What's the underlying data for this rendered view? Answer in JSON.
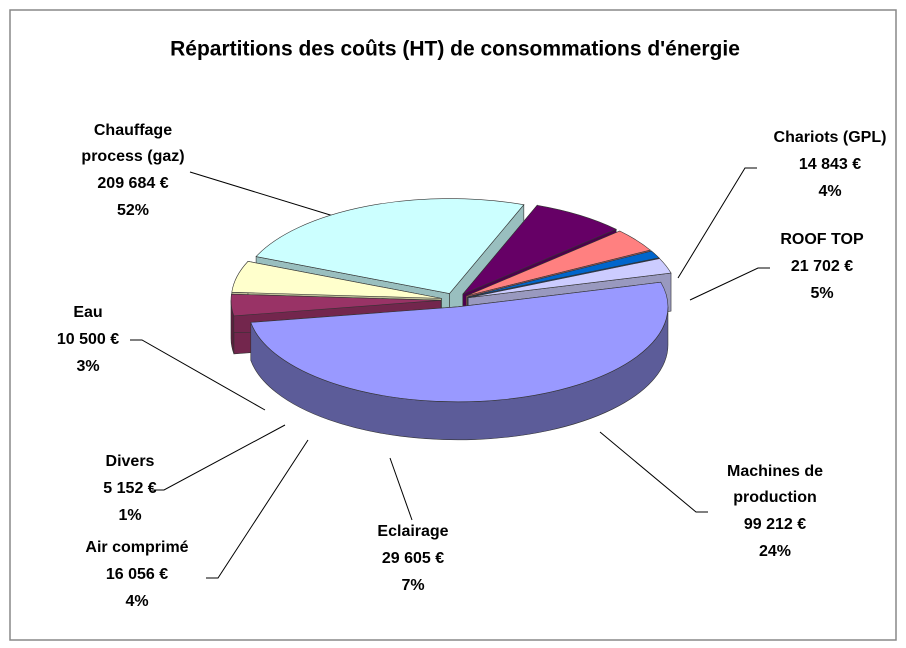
{
  "chart_data": {
    "type": "pie",
    "title": "Répartitions des coûts (HT) de consommations d'énergie",
    "categories": [
      "Chauffage process (gaz)",
      "Chariots (GPL)",
      "ROOF TOP",
      "Machines de production",
      "Eclairage",
      "Air comprimé",
      "Divers",
      "Eau"
    ],
    "values": [
      209684,
      14843,
      21702,
      99212,
      29605,
      16056,
      5152,
      10500
    ],
    "value_labels": [
      "209 684 €",
      "14 843 €",
      "21 702 €",
      "99 212 €",
      "29 605 €",
      "16 056 €",
      "5 152 €",
      "10 500 €"
    ],
    "percentage_labels": [
      "52%",
      "4%",
      "5%",
      "24%",
      "7%",
      "4%",
      "1%",
      "3%"
    ],
    "colors": [
      "#9999ff",
      "#993366",
      "#ffffcc",
      "#ccffff",
      "#660066",
      "#ff8080",
      "#0066cc",
      "#ccccff"
    ]
  }
}
